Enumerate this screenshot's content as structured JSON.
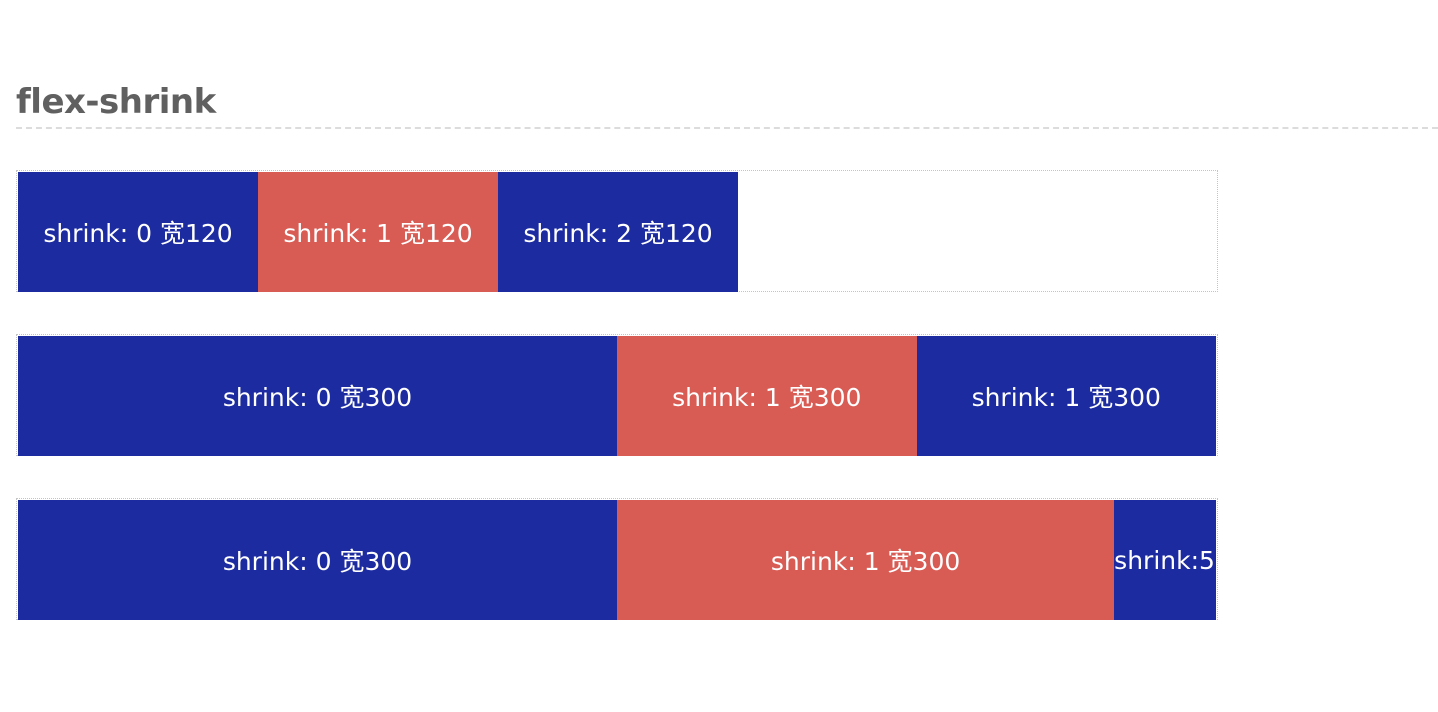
{
  "section": {
    "title": "flex-shrink"
  },
  "rows": [
    {
      "boxes": [
        {
          "label": "shrink: 0 宽120",
          "color": "#1c2ba0"
        },
        {
          "label": "shrink: 1 宽120",
          "color": "#d85b54"
        },
        {
          "label": "shrink: 2 宽120",
          "color": "#1c2ba0"
        }
      ]
    },
    {
      "boxes": [
        {
          "label": "shrink: 0 宽300",
          "color": "#1c2ba0"
        },
        {
          "label": "shrink: 1 宽300",
          "color": "#d85b54"
        },
        {
          "label": "shrink: 1 宽300",
          "color": "#1c2ba0"
        }
      ]
    },
    {
      "boxes": [
        {
          "label": "shrink: 0 宽300",
          "color": "#1c2ba0"
        },
        {
          "label": "shrink: 1 宽300",
          "color": "#d85b54"
        },
        {
          "label": "shrink:5",
          "color": "#1c2ba0"
        }
      ]
    }
  ],
  "colors": {
    "blue": "#1c2ba0",
    "red": "#d85b54",
    "title_text": "#606060",
    "divider": "#dcdcdc"
  }
}
